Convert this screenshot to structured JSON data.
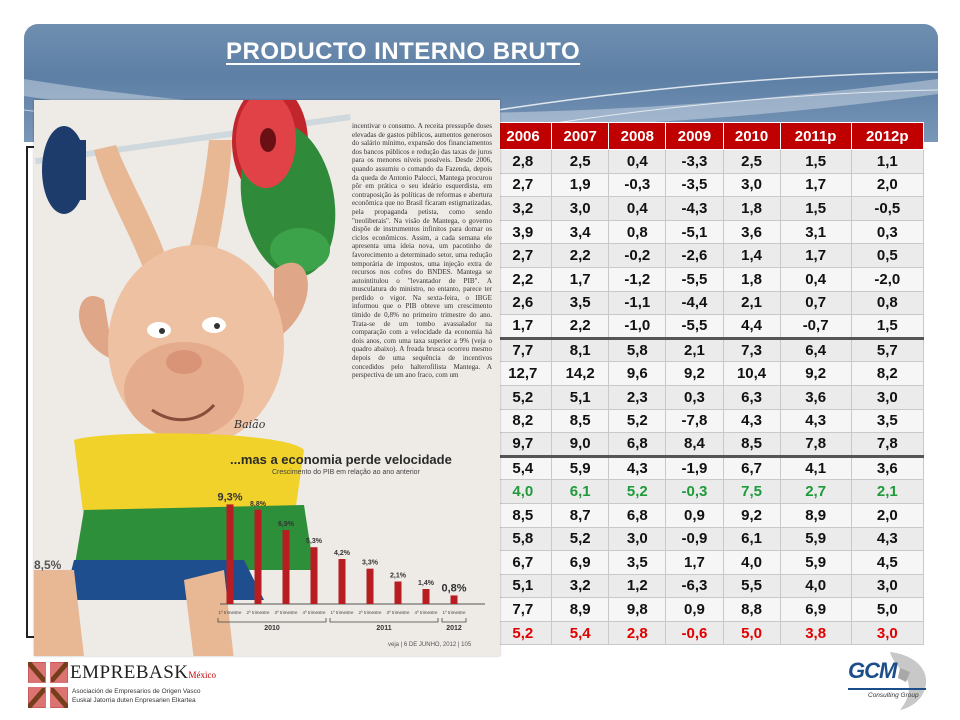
{
  "slide": {
    "title": "PRODUCTO INTERNO BRUTO"
  },
  "table": {
    "headers": [
      "2006",
      "2007",
      "2008",
      "2009",
      "2010",
      "2011p",
      "2012p"
    ],
    "rows": [
      [
        "2,8",
        "2,5",
        "0,4",
        "-3,3",
        "2,5",
        "1,5",
        "1,1"
      ],
      [
        "2,7",
        "1,9",
        "-0,3",
        "-3,5",
        "3,0",
        "1,7",
        "2,0"
      ],
      [
        "3,2",
        "3,0",
        "0,4",
        "-4,3",
        "1,8",
        "1,5",
        "-0,5"
      ],
      [
        "3,9",
        "3,4",
        "0,8",
        "-5,1",
        "3,6",
        "3,1",
        "0,3"
      ],
      [
        "2,7",
        "2,2",
        "-0,2",
        "-2,6",
        "1,4",
        "1,7",
        "0,5"
      ],
      [
        "2,2",
        "1,7",
        "-1,2",
        "-5,5",
        "1,8",
        "0,4",
        "-2,0"
      ],
      [
        "2,6",
        "3,5",
        "-1,1",
        "-4,4",
        "2,1",
        "0,7",
        "0,8"
      ],
      [
        "1,7",
        "2,2",
        "-1,0",
        "-5,5",
        "4,4",
        "-0,7",
        "1,5"
      ],
      [
        "7,7",
        "8,1",
        "5,8",
        "2,1",
        "7,3",
        "6,4",
        "5,7"
      ],
      [
        "12,7",
        "14,2",
        "9,6",
        "9,2",
        "10,4",
        "9,2",
        "8,2"
      ],
      [
        "5,2",
        "5,1",
        "2,3",
        "0,3",
        "6,3",
        "3,6",
        "3,0"
      ],
      [
        "8,2",
        "8,5",
        "5,2",
        "-7,8",
        "4,3",
        "4,3",
        "3,5"
      ],
      [
        "9,7",
        "9,0",
        "6,8",
        "8,4",
        "8,5",
        "7,8",
        "7,8"
      ],
      [
        "5,4",
        "5,9",
        "4,3",
        "-1,9",
        "6,7",
        "4,1",
        "3,6"
      ],
      [
        "4,0",
        "6,1",
        "5,2",
        "-0,3",
        "7,5",
        "2,7",
        "2,1"
      ],
      [
        "8,5",
        "8,7",
        "6,8",
        "0,9",
        "9,2",
        "8,9",
        "2,0"
      ],
      [
        "5,8",
        "5,2",
        "3,0",
        "-0,9",
        "6,1",
        "5,9",
        "4,3"
      ],
      [
        "6,7",
        "6,9",
        "3,5",
        "1,7",
        "4,0",
        "5,9",
        "4,5"
      ],
      [
        "5,1",
        "3,2",
        "1,2",
        "-6,3",
        "5,5",
        "4,0",
        "3,0"
      ],
      [
        "7,7",
        "8,9",
        "9,8",
        "0,9",
        "8,8",
        "6,9",
        "5,0"
      ],
      [
        "5,2",
        "5,4",
        "2,8",
        "-0,6",
        "5,0",
        "3,8",
        "3,0"
      ]
    ],
    "green_row": 14,
    "red_row": 20,
    "separator_rows": [
      8,
      13
    ]
  },
  "clipping": {
    "article_text": "incentivar o consumo. A receita pressupõe doses elevadas de gastos públicos, aumentos generosos do salário mínimo, expansão dos financiamentos dos bancos públicos e redução das taxas de juros para os menores níveis possíveis. Desde 2006, quando assumiu o comando da Fazenda, depois da queda de Antonio Palocci, Mantega procurou pôr em prática o seu ideário esquerdista, em contraposição às políticas de reformas e abertura econômica que no Brasil ficaram estigmatizadas, pela propaganda petista, como sendo \"neoliberais\". Na visão de Mantega, o governo dispõe de instrumentos infinitos para domar os ciclos econômicos. Assim, a cada semana ele apresenta uma ideia nova, um pacotinho de favorecimento a determinado setor, uma redução temporária de impostos, uma injeção extra de recursos nos cofres do BNDES. Mantega se autointitulou o \"levantador de PIB\". A musculatura do ministro, no entanto, parece ter perdido o vigor. Na sexta-feira, o IBGE informou que o PIB obteve um crescimento tímido de 0,8% no primeiro trimestre do ano. Trata-se de um tombo avassalador na comparação com a velocidade da economia há dois anos, com uma taxa superior a 9% (veja o quadro abaixo). A freada brusca ocorreu mesmo depois de uma sequência de incentivos concedidos pelo halterofilista Mantega. A perspectiva de um ano fraco, com um",
    "chart_title": "...mas a economia perde velocidade",
    "chart_subtitle": "Crescimento do PIB em relação ao ano anterior",
    "signature": "Baião",
    "left_edge_value": "8,5%",
    "footer": "veja | 6 DE JUNHO, 2012 | 105"
  },
  "chart_data": {
    "type": "bar",
    "title": "...mas a economia perde velocidade",
    "subtitle": "Crescimento do PIB em relação ao ano anterior",
    "categories": [
      "1º trimestre",
      "2º trimestre",
      "3º trimestre",
      "4º trimestre",
      "1º trimestre",
      "2º trimestre",
      "3º trimestre",
      "4º trimestre",
      "1º trimestre"
    ],
    "groups": [
      {
        "label": "2010",
        "count": 4
      },
      {
        "label": "2011",
        "count": 4
      },
      {
        "label": "2012",
        "count": 1
      }
    ],
    "values": [
      9.3,
      8.8,
      6.9,
      5.3,
      4.2,
      3.3,
      2.1,
      1.4,
      0.8
    ],
    "value_labels": [
      "9,3%",
      "8,8%",
      "6,9%",
      "5,3%",
      "4,2%",
      "3,3%",
      "2,1%",
      "1,4%",
      "0,8%"
    ],
    "ylim": [
      0,
      10
    ],
    "bar_color": "#b81d22"
  },
  "logos": {
    "left_main": "EMPREBASK",
    "left_suffix": "México",
    "left_line1": "Asociación de Empresarios de Origen Vasco",
    "left_line2": "Euskal Jatorria duten Enpresarien Elkartea",
    "right_main": "GCM",
    "right_sub": "Consulting Group"
  }
}
